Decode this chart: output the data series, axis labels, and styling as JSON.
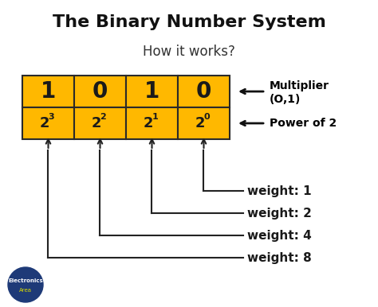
{
  "title": "The Binary Number System",
  "subtitle": "How it works?",
  "bg_color": "#ffffff",
  "cell_bg": "#FFB800",
  "cell_border": "#2a2a2a",
  "bits": [
    "1",
    "0",
    "1",
    "0"
  ],
  "powers": [
    "2",
    "2",
    "2",
    "2"
  ],
  "exponents": [
    "3",
    "2",
    "1",
    "0"
  ],
  "multiplier_line1": "Multiplier",
  "multiplier_line2": "(O,1)",
  "power_of_2_text": "Power of 2",
  "weights": [
    "weight: 1",
    "weight: 2",
    "weight: 4",
    "weight: 8"
  ],
  "watermark": "electronicsarea.com",
  "watermark_color": "#c8c8c8",
  "title_color": "#111111",
  "subtitle_color": "#333333",
  "cell_text_color": "#1a1a1a",
  "weight_text_color": "#1a1a1a",
  "line_color": "#222222",
  "arrow_color": "#111111"
}
